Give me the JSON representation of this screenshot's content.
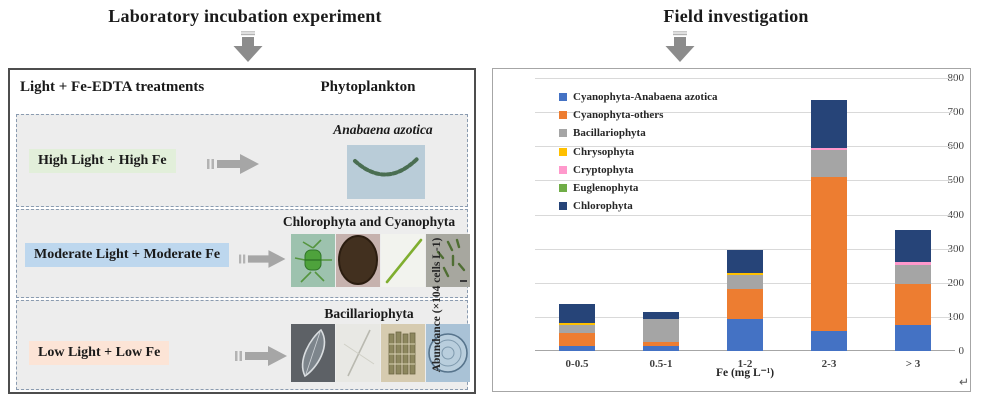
{
  "left_panel": {
    "title": "Laboratory incubation experiment",
    "header": {
      "treatments": "Light + Fe-EDTA treatments",
      "phytoplankton": "Phytoplankton"
    },
    "rows": [
      {
        "treatment": "High Light + High Fe",
        "treatment_bg": "#e2efda",
        "result_label": "Anabaena azotica",
        "images": [
          "anabaena-chain-photo"
        ]
      },
      {
        "treatment": "Moderate Light + Moderate Fe",
        "treatment_bg": "#bdd7ee",
        "result_label": "Chlorophyta and Cyanophyta",
        "images": [
          "staurastrum-photo",
          "microcystis-colony-photo",
          "green-needle-photo",
          "cyanophyte-rods-photo"
        ]
      },
      {
        "treatment": "Low Light + Low Fe",
        "treatment_bg": "#fce4d6",
        "result_label": "Bacillariophyta",
        "images": [
          "navicula-diatom-photo",
          "pennate-diatom-photo",
          "fragilaria-ribbon-photo",
          "centric-diatom-photo"
        ]
      }
    ]
  },
  "right_panel": {
    "title": "Field investigation"
  },
  "chart_data": {
    "type": "bar",
    "stacked": true,
    "title": "",
    "categories": [
      "0-0.5",
      "0.5-1",
      "1-2",
      "2-3",
      "> 3"
    ],
    "series": [
      {
        "name": "Cyanophyta-Anabaena azotica",
        "color": "#4472c4",
        "values": [
          16,
          15,
          95,
          60,
          76
        ]
      },
      {
        "name": "Cyanophyta-others",
        "color": "#ed7d31",
        "values": [
          36,
          11,
          87,
          450,
          121
        ]
      },
      {
        "name": "Bacillariophyta",
        "color": "#a5a5a5",
        "values": [
          25,
          69,
          41,
          80,
          55
        ]
      },
      {
        "name": "Chrysophyta",
        "color": "#ffc000",
        "values": [
          5,
          0,
          6,
          0,
          0
        ]
      },
      {
        "name": "Cryptophyta",
        "color": "#ff99cc",
        "values": [
          0,
          0,
          0,
          5,
          8
        ]
      },
      {
        "name": "Euglenophyta",
        "color": "#70ad47",
        "values": [
          0,
          0,
          0,
          0,
          0
        ]
      },
      {
        "name": "Chlorophyta",
        "color": "#264478",
        "values": [
          56,
          18,
          66,
          140,
          95
        ]
      }
    ],
    "xlabel": "Fe (mg L⁻¹)",
    "ylabel": "Abundance (×104 cells L-1)",
    "ylim": [
      0,
      800
    ],
    "yticks": [
      0,
      100,
      200,
      300,
      400,
      500,
      600,
      700,
      800
    ],
    "grid": true,
    "legend_position": "upper-left-inside"
  },
  "misc": {
    "return_mark": "↵"
  }
}
